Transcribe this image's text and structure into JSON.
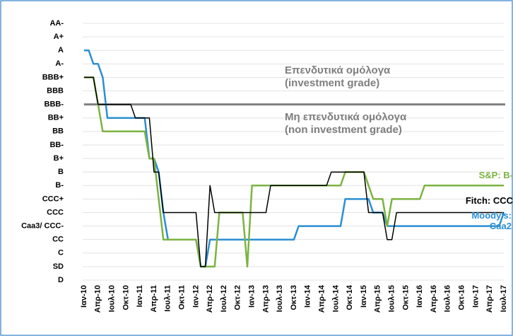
{
  "chart_data": {
    "type": "line",
    "categories": [
      "Ιαν-10",
      null,
      null,
      "Απρ-10",
      null,
      null,
      "Ιουλ-10",
      null,
      null,
      "Οκτ-10",
      null,
      null,
      "Ιαν-11",
      null,
      null,
      "Απρ-11",
      null,
      null,
      "Ιουλ-11",
      null,
      null,
      "Οκτ-11",
      null,
      null,
      "Ιαν-12",
      null,
      null,
      "Απρ-12",
      null,
      null,
      "Ιουλ-12",
      null,
      null,
      "Οκτ-12",
      null,
      null,
      "Ιαν-13",
      null,
      null,
      "Απρ-13",
      null,
      null,
      "Ιουλ-13",
      null,
      null,
      "Οκτ-13",
      null,
      null,
      "Ιαν-14",
      null,
      null,
      "Απρ-14",
      null,
      null,
      "Ιουλ-14",
      null,
      null,
      "Οκτ-14",
      null,
      null,
      "Ιαν-15",
      null,
      null,
      "Απρ-15",
      null,
      null,
      "Ιουλ-15",
      null,
      null,
      "Οκτ-15",
      null,
      null,
      "Ιαν-16",
      null,
      null,
      "Απρ-16",
      null,
      null,
      "Ιουλ-16",
      null,
      null,
      "Οκτ-16",
      null,
      null,
      "Ιαν-17",
      null,
      null,
      "Απρ-17",
      null,
      null,
      "Ιουλ-17"
    ],
    "series": [
      {
        "name": "Moody's: Caa2",
        "color": "#2b8fd3",
        "values": [
          17,
          17,
          16,
          16,
          15,
          12,
          12,
          12,
          12,
          12,
          12,
          12,
          12,
          12,
          9,
          9,
          8,
          5,
          3,
          3,
          3,
          3,
          3,
          3,
          3,
          1,
          1,
          3,
          3,
          3,
          3,
          3,
          3,
          3,
          3,
          3,
          3,
          3,
          3,
          3,
          3,
          3,
          3,
          3,
          3,
          3,
          4,
          4,
          4,
          4,
          4,
          4,
          4,
          4,
          4,
          4,
          6,
          6,
          6,
          6,
          6,
          6,
          5,
          5,
          5,
          4,
          4,
          4,
          4,
          4,
          4,
          4,
          4,
          4,
          4,
          4,
          4,
          4,
          4,
          4,
          4,
          4,
          4,
          4,
          4,
          4,
          4,
          4,
          4,
          4,
          5
        ]
      },
      {
        "name": "S&P: B-",
        "color": "#7cb342",
        "values": [
          15,
          15,
          15,
          13,
          11,
          11,
          11,
          11,
          11,
          11,
          11,
          11,
          11,
          11,
          9,
          9,
          6,
          3,
          3,
          3,
          3,
          3,
          3,
          3,
          3,
          1,
          1,
          1,
          1,
          5,
          5,
          5,
          5,
          5,
          5,
          1,
          7,
          7,
          7,
          7,
          7,
          7,
          7,
          7,
          7,
          7,
          7,
          7,
          7,
          7,
          7,
          7,
          7,
          7,
          7,
          7,
          8,
          8,
          8,
          8,
          8,
          7,
          6,
          6,
          6,
          4,
          6,
          6,
          6,
          6,
          6,
          6,
          6,
          7,
          7,
          7,
          7,
          7,
          7,
          7,
          7,
          7,
          7,
          7,
          7,
          7,
          7,
          7,
          7,
          7,
          7
        ]
      },
      {
        "name": "Fitch: CCC",
        "color": "#000000",
        "values": [
          15,
          15,
          15,
          13,
          13,
          13,
          13,
          13,
          13,
          13,
          13,
          12,
          12,
          12,
          12,
          8,
          8,
          5,
          5,
          5,
          5,
          5,
          5,
          5,
          5,
          1,
          1,
          7,
          5,
          5,
          5,
          5,
          5,
          5,
          5,
          5,
          5,
          5,
          5,
          5,
          7,
          7,
          7,
          7,
          7,
          7,
          7,
          7,
          7,
          7,
          7,
          7,
          7,
          8,
          8,
          8,
          8,
          8,
          8,
          8,
          8,
          5,
          5,
          5,
          5,
          3,
          3,
          5,
          5,
          5,
          5,
          5,
          5,
          5,
          5,
          5,
          5,
          5,
          5,
          5,
          5,
          5,
          5,
          5,
          5,
          5,
          5,
          5,
          5,
          5,
          5
        ]
      }
    ],
    "threshold": 13,
    "annotations": [
      "Επενδυτικά ομόλογα",
      "(investment grade)",
      "Μη επενδυτικά ομόλογα",
      "(non investment grade)"
    ],
    "ylim": [
      0,
      19
    ],
    "yticks": [
      {
        "value": 19,
        "label": "AA-"
      },
      {
        "value": 18,
        "label": "A+"
      },
      {
        "value": 17,
        "label": "A"
      },
      {
        "value": 16,
        "label": "A-"
      },
      {
        "value": 15,
        "label": "BBB+"
      },
      {
        "value": 14,
        "label": "BBB"
      },
      {
        "value": 13,
        "label": "BBB-"
      },
      {
        "value": 12,
        "label": "BB+"
      },
      {
        "value": 11,
        "label": "BB"
      },
      {
        "value": 10,
        "label": "BB-"
      },
      {
        "value": 9,
        "label": "B+"
      },
      {
        "value": 8,
        "label": "B"
      },
      {
        "value": 7,
        "label": "B-"
      },
      {
        "value": 6,
        "label": "CCC+"
      },
      {
        "value": 5,
        "label": "CCC"
      },
      {
        "value": 4,
        "label": "Caa3/ CCC-"
      },
      {
        "value": 3,
        "label": "CC"
      },
      {
        "value": 2,
        "label": "C"
      },
      {
        "value": 1,
        "label": "SD"
      },
      {
        "value": 0,
        "label": "D"
      }
    ],
    "grid": true
  }
}
